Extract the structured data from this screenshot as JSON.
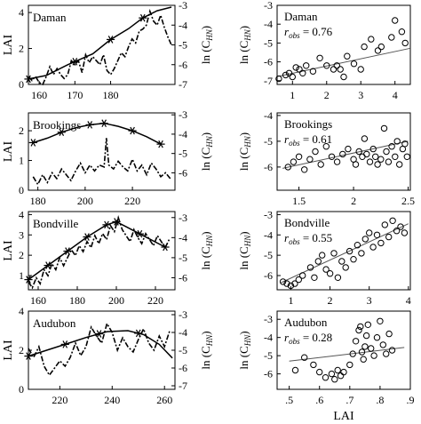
{
  "figure": {
    "left_ylabel": "LAI",
    "right_ylabel_main": "ln (C",
    "right_ylabel_sub": "HN",
    "right_ylabel_close": ")",
    "scatter_xlabel": "LAI",
    "r_main": "r",
    "r_sub": "obs"
  },
  "chart_data": [
    {
      "type": "line",
      "site": "Daman",
      "label": "Daman",
      "xlim": [
        157,
        198
      ],
      "xticks": [
        160,
        170,
        180
      ],
      "ylim_left": [
        0,
        4.4
      ],
      "yticks_left": [
        0,
        2,
        4
      ],
      "ylim_right": [
        -7,
        -3
      ],
      "yticks_right": [
        -3,
        -4,
        -5,
        -6,
        -7
      ],
      "lai_x": [
        157,
        162,
        168,
        175,
        180,
        185,
        189,
        193,
        197
      ],
      "lai_y": [
        0.3,
        0.5,
        1.1,
        1.7,
        2.5,
        3.1,
        3.7,
        4.1,
        4.3
      ],
      "lai_markers_x": [
        157,
        170,
        180,
        189
      ],
      "lc_x": [
        157,
        158,
        159,
        160,
        161,
        162,
        163,
        164,
        165,
        166,
        167,
        168,
        169,
        170,
        171,
        172,
        173,
        174,
        175,
        176,
        177,
        178,
        179,
        180,
        181,
        182,
        183,
        184,
        185,
        186,
        187,
        188,
        189,
        190,
        191,
        192,
        193,
        194,
        195,
        196,
        197
      ],
      "lc_y": [
        -6.6,
        -6.8,
        -6.6,
        -6.9,
        -7.0,
        -6.6,
        -6.1,
        -6.5,
        -6.2,
        -6.5,
        -6.7,
        -6.5,
        -5.8,
        -6.0,
        -5.8,
        -6.4,
        -5.5,
        -5.9,
        -5.6,
        -5.8,
        -6.0,
        -5.5,
        -6.3,
        -6.5,
        -6.2,
        -5.8,
        -5.4,
        -5.6,
        -5.1,
        -4.7,
        -4.9,
        -4.3,
        -4.2,
        -4.0,
        -3.3,
        -3.8,
        -4.0,
        -3.5,
        -4.1,
        -4.6,
        -5.0
      ],
      "scatter_xlim": [
        0.55,
        4.45
      ],
      "scatter_xticks": [
        1,
        2,
        3,
        4
      ],
      "scatter_ylim": [
        -7.2,
        -3
      ],
      "scatter_yticks": [
        -3,
        -4,
        -5,
        -6,
        -7
      ],
      "scatter_x": [
        0.6,
        0.8,
        0.9,
        1.0,
        1.1,
        1.2,
        1.3,
        1.4,
        1.6,
        1.8,
        2.0,
        2.2,
        2.3,
        2.4,
        2.5,
        2.6,
        2.8,
        3.0,
        3.1,
        3.3,
        3.5,
        3.6,
        3.9,
        4.0,
        4.2,
        4.3
      ],
      "scatter_y": [
        -6.9,
        -6.7,
        -6.6,
        -6.8,
        -6.3,
        -6.4,
        -6.6,
        -6.2,
        -6.5,
        -5.8,
        -6.2,
        -6.4,
        -6.2,
        -6.4,
        -6.8,
        -5.7,
        -6.1,
        -6.4,
        -5.2,
        -4.8,
        -5.4,
        -5.2,
        -4.7,
        -3.8,
        -4.4,
        -5.0
      ],
      "fit_x": [
        0.55,
        4.45
      ],
      "fit_y": [
        -6.78,
        -5.28
      ],
      "r_value": " = 0.76"
    },
    {
      "type": "line",
      "site": "Brookings",
      "label": "Brookings",
      "xlim": [
        176,
        238
      ],
      "xticks": [
        180,
        200,
        220
      ],
      "ylim_left": [
        0,
        2.6
      ],
      "yticks_left": [
        0,
        1,
        2
      ],
      "ylim_right": [
        -6.9,
        -2.9
      ],
      "yticks_right": [
        -3,
        -4,
        -5,
        -6
      ],
      "lai_x": [
        178,
        184,
        190,
        196,
        202,
        208,
        214,
        220,
        226,
        232
      ],
      "lai_y": [
        1.6,
        1.75,
        1.95,
        2.1,
        2.2,
        2.25,
        2.15,
        2.0,
        1.8,
        1.55
      ],
      "lai_markers_x": [
        178,
        190,
        202,
        208,
        220,
        232
      ],
      "lc_x": [
        178,
        180,
        182,
        184,
        186,
        188,
        190,
        192,
        194,
        196,
        198,
        200,
        202,
        204,
        206,
        208,
        209,
        210,
        212,
        214,
        216,
        218,
        220,
        222,
        224,
        226,
        228,
        230,
        232,
        234,
        236
      ],
      "lc_y": [
        -6.2,
        -6.6,
        -6.1,
        -6.5,
        -6.0,
        -6.3,
        -5.8,
        -6.1,
        -6.4,
        -5.9,
        -5.5,
        -6.0,
        -5.6,
        -5.9,
        -5.6,
        -5.7,
        -4.2,
        -5.6,
        -5.8,
        -5.4,
        -5.7,
        -5.9,
        -5.3,
        -5.9,
        -5.6,
        -6.1,
        -5.5,
        -5.8,
        -6.2,
        -6.0,
        -6.3
      ],
      "scatter_xlim": [
        1.3,
        2.52
      ],
      "scatter_xticks": [
        1.5,
        2,
        2.5
      ],
      "scatter_ylim": [
        -6.9,
        -3.9
      ],
      "scatter_yticks": [
        -4,
        -5,
        -6
      ],
      "scatter_x": [
        1.4,
        1.45,
        1.5,
        1.55,
        1.6,
        1.65,
        1.7,
        1.75,
        1.8,
        1.85,
        1.9,
        1.95,
        2.0,
        2.02,
        2.05,
        2.08,
        2.1,
        2.12,
        2.15,
        2.18,
        2.2,
        2.22,
        2.25,
        2.28,
        2.3,
        2.32,
        2.35,
        2.38,
        2.4,
        2.42,
        2.45,
        2.47,
        2.49
      ],
      "scatter_y": [
        -6.0,
        -5.8,
        -5.6,
        -6.1,
        -5.7,
        -5.4,
        -5.9,
        -5.2,
        -5.6,
        -5.8,
        -5.5,
        -5.3,
        -5.7,
        -5.9,
        -5.4,
        -5.6,
        -4.9,
        -5.5,
        -5.8,
        -5.3,
        -5.6,
        -5.9,
        -5.7,
        -4.5,
        -5.4,
        -5.8,
        -5.2,
        -5.6,
        -5.0,
        -5.9,
        -5.3,
        -5.1,
        -5.6
      ],
      "fit_x": [
        1.35,
        2.5
      ],
      "fit_y": [
        -6.05,
        -5.0
      ],
      "r_value": " = 0.61"
    },
    {
      "type": "line",
      "site": "Bondville",
      "label": "Bondville",
      "xlim": [
        155,
        230
      ],
      "xticks": [
        160,
        180,
        200,
        220
      ],
      "ylim_left": [
        0.3,
        4.15
      ],
      "yticks_left": [
        1,
        2,
        3,
        4
      ],
      "ylim_right": [
        -6.6,
        -2.7
      ],
      "yticks_right": [
        -3,
        -4,
        -5,
        -6
      ],
      "lai_x": [
        155,
        165,
        175,
        185,
        195,
        200,
        205,
        215,
        225
      ],
      "lai_y": [
        0.8,
        1.5,
        2.2,
        2.9,
        3.5,
        3.65,
        3.4,
        2.9,
        2.4
      ],
      "lai_markers_x": [
        155,
        165,
        175,
        185,
        195,
        200,
        212,
        225
      ],
      "lc_x": [
        155,
        157,
        159,
        161,
        163,
        165,
        167,
        169,
        171,
        173,
        175,
        177,
        179,
        181,
        183,
        185,
        187,
        189,
        191,
        193,
        195,
        197,
        199,
        201,
        203,
        205,
        207,
        209,
        211,
        213,
        215,
        217,
        219,
        221,
        223,
        225,
        227
      ],
      "lc_y": [
        -6.2,
        -6.5,
        -6.0,
        -6.3,
        -5.6,
        -5.9,
        -5.3,
        -5.6,
        -5.0,
        -5.4,
        -5.0,
        -4.6,
        -4.9,
        -4.4,
        -4.7,
        -4.2,
        -4.5,
        -3.9,
        -4.3,
        -3.8,
        -4.1,
        -3.4,
        -3.7,
        -3.0,
        -3.6,
        -3.9,
        -4.2,
        -3.6,
        -4.0,
        -4.3,
        -3.8,
        -4.1,
        -4.4,
        -3.9,
        -4.2,
        -4.5,
        -4.1
      ],
      "scatter_xlim": [
        0.65,
        4.05
      ],
      "scatter_xticks": [
        1,
        2,
        3,
        4
      ],
      "scatter_ylim": [
        -6.7,
        -2.85
      ],
      "scatter_yticks": [
        -3,
        -4,
        -5,
        -6
      ],
      "scatter_x": [
        0.8,
        0.9,
        1.0,
        1.1,
        1.2,
        1.3,
        1.5,
        1.6,
        1.7,
        1.8,
        1.9,
        2.0,
        2.1,
        2.2,
        2.3,
        2.4,
        2.5,
        2.6,
        2.7,
        2.8,
        2.9,
        3.0,
        3.1,
        3.2,
        3.3,
        3.4,
        3.5,
        3.6,
        3.7,
        3.8,
        3.9
      ],
      "scatter_y": [
        -6.3,
        -6.4,
        -6.5,
        -6.4,
        -6.2,
        -6.0,
        -5.6,
        -6.1,
        -5.3,
        -5.0,
        -5.7,
        -5.9,
        -4.9,
        -6.1,
        -5.3,
        -5.6,
        -4.8,
        -5.2,
        -4.5,
        -4.9,
        -4.2,
        -3.9,
        -4.6,
        -4.0,
        -4.4,
        -3.5,
        -4.1,
        -3.3,
        -3.8,
        -3.6,
        -3.9
      ],
      "fit_x": [
        0.75,
        4.0
      ],
      "fit_y": [
        -6.35,
        -3.45
      ],
      "r_value": " = 0.55"
    },
    {
      "type": "line",
      "site": "Audubon",
      "label": "Audubon",
      "xlim": [
        208,
        264
      ],
      "xticks": [
        220,
        240,
        260
      ],
      "ylim_left": [
        0,
        4
      ],
      "yticks_left": [
        0,
        2,
        4
      ],
      "ylim_right": [
        -7.2,
        -2.8
      ],
      "yticks_right": [
        -3,
        -4,
        -5,
        -6,
        -7
      ],
      "lai_x": [
        208,
        215,
        222,
        230,
        238,
        246,
        252,
        258,
        263
      ],
      "lai_y": [
        1.7,
        2.0,
        2.3,
        2.65,
        2.95,
        3.0,
        2.8,
        2.3,
        1.6
      ],
      "lai_markers_x": [
        208,
        222,
        235,
        250
      ],
      "lc_x": [
        208,
        210,
        212,
        214,
        216,
        218,
        220,
        222,
        224,
        226,
        228,
        230,
        232,
        234,
        236,
        238,
        240,
        242,
        244,
        246,
        248,
        250,
        252,
        254,
        256,
        258,
        260,
        262
      ],
      "lc_y": [
        -4.9,
        -5.4,
        -4.8,
        -5.9,
        -6.4,
        -6.0,
        -5.6,
        -5.9,
        -5.4,
        -4.6,
        -5.3,
        -4.8,
        -3.7,
        -4.2,
        -4.6,
        -3.5,
        -4.0,
        -5.0,
        -4.3,
        -4.8,
        -5.1,
        -4.4,
        -3.8,
        -4.6,
        -5.0,
        -4.2,
        -4.8,
        -3.9
      ],
      "scatter_xlim": [
        0.46,
        0.9
      ],
      "scatter_xticks": [
        0.5,
        0.6,
        0.7,
        0.8,
        0.9
      ],
      "scatter_ylim": [
        -6.85,
        -2.55
      ],
      "scatter_yticks": [
        -3,
        -4,
        -5,
        -6
      ],
      "scatter_x": [
        0.52,
        0.55,
        0.58,
        0.6,
        0.62,
        0.64,
        0.65,
        0.66,
        0.67,
        0.68,
        0.7,
        0.71,
        0.72,
        0.73,
        0.735,
        0.74,
        0.745,
        0.75,
        0.755,
        0.76,
        0.77,
        0.78,
        0.79,
        0.8,
        0.81,
        0.82,
        0.83,
        0.84
      ],
      "scatter_y": [
        -5.8,
        -5.1,
        -5.5,
        -5.9,
        -6.2,
        -6.0,
        -6.3,
        -5.8,
        -6.1,
        -5.9,
        -5.5,
        -4.9,
        -4.2,
        -3.6,
        -3.4,
        -4.8,
        -5.2,
        -4.5,
        -3.9,
        -3.3,
        -4.6,
        -5.0,
        -4.0,
        -3.1,
        -4.4,
        -4.9,
        -3.8,
        -4.7
      ],
      "fit_x": [
        0.5,
        0.88
      ],
      "fit_y": [
        -5.3,
        -4.55
      ],
      "r_value": " = 0.28"
    }
  ]
}
